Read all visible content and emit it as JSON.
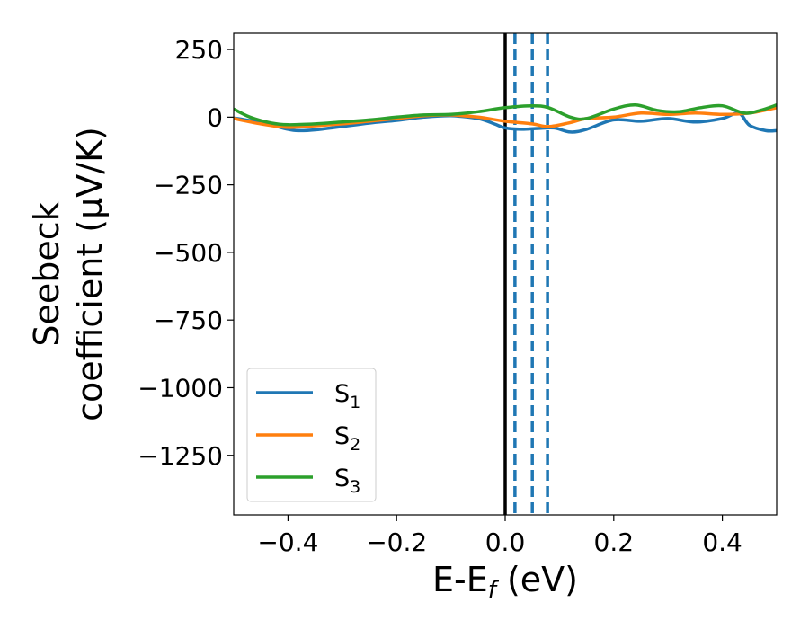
{
  "chart_data": {
    "type": "line",
    "xlabel": "E-E",
    "xlabel_sub": "f",
    "xlabel_unit": " (eV)",
    "ylabel_line1": "Seebeck",
    "ylabel_line2": "coefficient  (μV/K)",
    "xlim": [
      -0.5,
      0.5
    ],
    "ylim": [
      -1470,
      310
    ],
    "xticks": [
      -0.4,
      -0.2,
      0.0,
      0.2,
      0.4
    ],
    "xtick_labels": [
      "−0.4",
      "−0.2",
      "0.0",
      "0.2",
      "0.4"
    ],
    "yticks": [
      250,
      0,
      -250,
      -500,
      -750,
      -1000,
      -1250
    ],
    "ytick_labels": [
      "250",
      "0",
      "−250",
      "−500",
      "−750",
      "−1000",
      "−1250"
    ],
    "grid": false,
    "legend_position": "lower-left",
    "fermi_line": {
      "x": 0.0,
      "color": "#000000"
    },
    "dashed_lines": {
      "x": [
        0.018,
        0.05,
        0.078
      ],
      "color": "#1f77b4"
    },
    "series": [
      {
        "name": "S",
        "name_sub": "1",
        "color": "#1f77b4",
        "x": [
          -0.5,
          -0.45,
          -0.4,
          -0.38,
          -0.35,
          -0.3,
          -0.25,
          -0.2,
          -0.15,
          -0.1,
          -0.05,
          -0.02,
          0.0,
          0.03,
          0.06,
          0.09,
          0.12,
          0.15,
          0.2,
          0.25,
          0.3,
          0.35,
          0.4,
          0.43,
          0.45,
          0.48,
          0.5
        ],
        "y": [
          -3,
          -20,
          -45,
          -50,
          -47,
          -35,
          -22,
          -12,
          0,
          5,
          -5,
          -25,
          -40,
          -45,
          -42,
          -40,
          -55,
          -45,
          -10,
          -15,
          -5,
          -18,
          -5,
          15,
          -30,
          -50,
          -50
        ]
      },
      {
        "name": "S",
        "name_sub": "2",
        "color": "#ff7f0e",
        "x": [
          -0.5,
          -0.45,
          -0.4,
          -0.35,
          -0.3,
          -0.25,
          -0.2,
          -0.15,
          -0.1,
          -0.05,
          0.0,
          0.05,
          0.08,
          0.12,
          0.15,
          0.2,
          0.25,
          0.3,
          0.35,
          0.4,
          0.45,
          0.5
        ],
        "y": [
          -5,
          -25,
          -38,
          -32,
          -25,
          -15,
          -5,
          5,
          8,
          0,
          -15,
          -25,
          -35,
          -20,
          -5,
          0,
          15,
          10,
          15,
          10,
          15,
          35
        ]
      },
      {
        "name": "S",
        "name_sub": "3",
        "color": "#2ca02c",
        "x": [
          -0.5,
          -0.47,
          -0.43,
          -0.4,
          -0.35,
          -0.3,
          -0.25,
          -0.2,
          -0.15,
          -0.1,
          -0.05,
          0.0,
          0.05,
          0.08,
          0.12,
          0.15,
          0.2,
          0.24,
          0.28,
          0.32,
          0.36,
          0.4,
          0.44,
          0.47,
          0.5
        ],
        "y": [
          30,
          0,
          -22,
          -28,
          -25,
          -18,
          -10,
          0,
          8,
          10,
          20,
          35,
          42,
          35,
          0,
          -5,
          30,
          45,
          25,
          20,
          35,
          42,
          15,
          25,
          45
        ]
      }
    ]
  }
}
